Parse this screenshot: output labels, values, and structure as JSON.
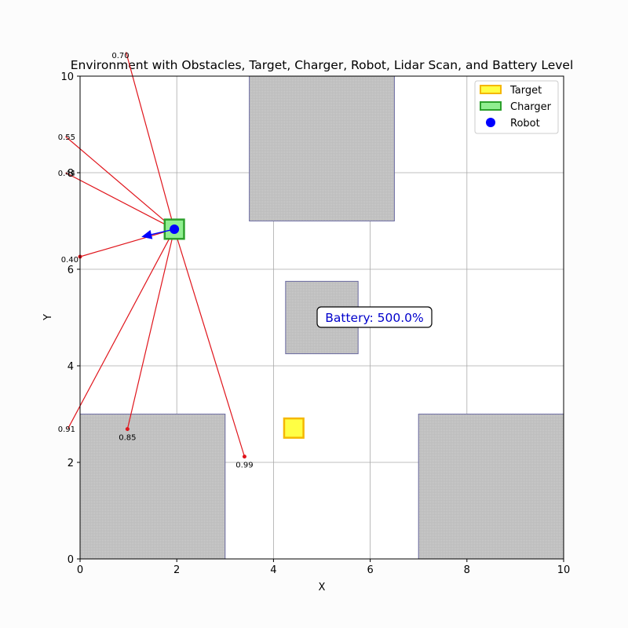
{
  "chart_data": {
    "type": "scatter",
    "title": "Environment with Obstacles, Target, Charger, Robot, Lidar Scan, and Battery Level",
    "xlabel": "X",
    "ylabel": "Y",
    "xlim": [
      0,
      10
    ],
    "ylim": [
      0,
      10
    ],
    "xticks": [
      0,
      2,
      4,
      6,
      8,
      10
    ],
    "yticks": [
      0,
      2,
      4,
      6,
      8,
      10
    ],
    "grid": true,
    "legend_position": "top-right",
    "legend": [
      {
        "label": "Target",
        "kind": "square",
        "fill": "#ffff44",
        "stroke": "#f5b700"
      },
      {
        "label": "Charger",
        "kind": "square",
        "fill": "#90ee90",
        "stroke": "#2ca02c"
      },
      {
        "label": "Robot",
        "kind": "circle",
        "fill": "#0000ff",
        "stroke": "#0000ff"
      }
    ],
    "obstacles": [
      {
        "x": 3.5,
        "y": 7.0,
        "w": 3.0,
        "h": 3.0
      },
      {
        "x": 4.25,
        "y": 4.25,
        "w": 1.5,
        "h": 1.5
      },
      {
        "x": 0.0,
        "y": 0.0,
        "w": 3.0,
        "h": 3.0
      },
      {
        "x": 7.0,
        "y": 0.0,
        "w": 3.0,
        "h": 3.0
      }
    ],
    "target": {
      "x": 4.42,
      "y": 2.71,
      "size": 0.4
    },
    "charger": {
      "x": 1.95,
      "y": 6.83,
      "size": 0.4
    },
    "robot": {
      "x": 1.95,
      "y": 6.83,
      "heading_to": {
        "x": 1.27,
        "y": 6.67
      }
    },
    "lidar": [
      {
        "x": 0.95,
        "y": 10.5,
        "label": "0.70",
        "dot": false
      },
      {
        "x": -0.3,
        "y": 8.75,
        "label": "0.55",
        "dot": false
      },
      {
        "x": -0.3,
        "y": 8.0,
        "label": "0.44",
        "dot": false
      },
      {
        "x": 0.0,
        "y": 6.26,
        "label": "0.40",
        "dot": true
      },
      {
        "x": -0.25,
        "y": 2.7,
        "label": "0.91",
        "dot": false
      },
      {
        "x": 0.98,
        "y": 2.69,
        "label": "0.85",
        "dot": true
      },
      {
        "x": 3.4,
        "y": 2.12,
        "label": "0.99",
        "dot": true
      }
    ],
    "battery_text": "Battery: 500.0%",
    "battery_pos": {
      "x": 6.0,
      "y": 5.0
    },
    "colors": {
      "lidar": "#e0151c",
      "obstacle_fill": "#c0c0c0",
      "obstacle_edge": "#6a6aa0",
      "robot": "#0000ff",
      "battery_text": "#0000cc",
      "grid": "#aaaaaa"
    }
  }
}
